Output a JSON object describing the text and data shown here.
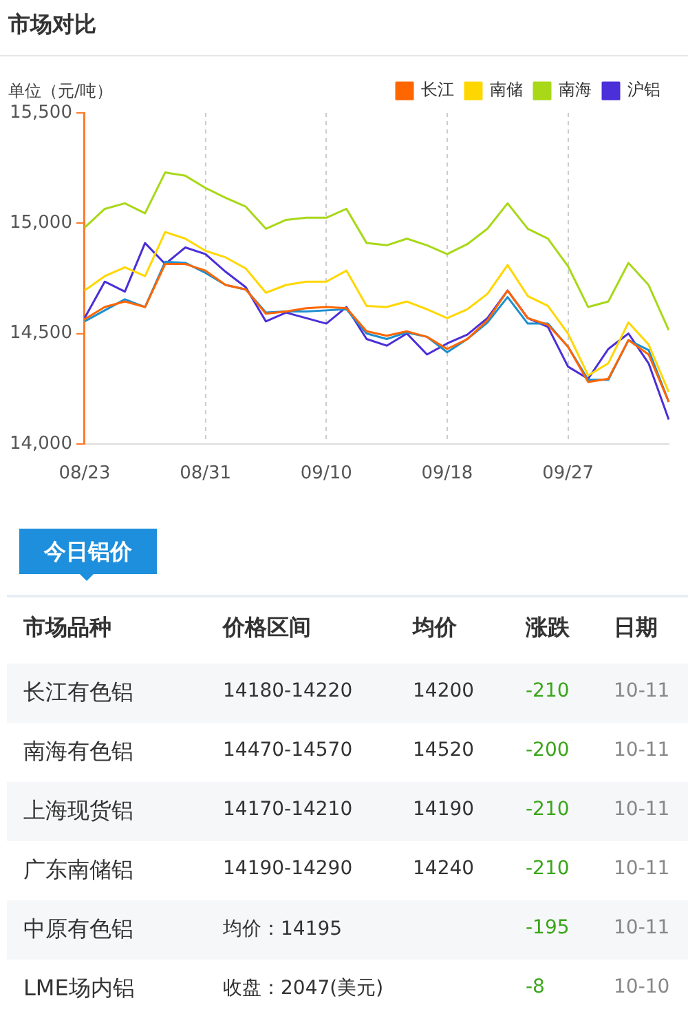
{
  "chart_data": [
    {
      "type": "line",
      "title": "市场对比",
      "ylabel": "单位（元/吨）",
      "categories": [
        "08/23",
        null,
        null,
        null,
        null,
        null,
        "08/31",
        null,
        null,
        null,
        null,
        null,
        "09/10",
        null,
        null,
        null,
        null,
        null,
        "09/18",
        null,
        null,
        null,
        null,
        null,
        "09/27",
        null,
        null,
        null,
        null,
        null
      ],
      "series": [
        {
          "name": "长江",
          "color": "#ff6600",
          "values": [
            14565,
            14620,
            14645,
            14620,
            14815,
            14815,
            14785,
            14720,
            14700,
            14590,
            14600,
            14615,
            14620,
            14615,
            14510,
            14490,
            14510,
            14485,
            14430,
            14475,
            14560,
            14695,
            14570,
            14540,
            14440,
            14280,
            14295,
            14470,
            14405,
            14190
          ]
        },
        {
          "name": "南储",
          "color": "#ffd700",
          "values": [
            14695,
            14760,
            14800,
            14760,
            14960,
            14930,
            14875,
            14845,
            14795,
            14685,
            14720,
            14735,
            14735,
            14785,
            14625,
            14620,
            14645,
            14610,
            14570,
            14610,
            14680,
            14810,
            14670,
            14625,
            14500,
            14310,
            14365,
            14550,
            14450,
            14235
          ]
        },
        {
          "name": "南海",
          "color": "#a8d818",
          "values": [
            14980,
            15065,
            15090,
            15045,
            15230,
            15215,
            15160,
            15115,
            15075,
            14975,
            15015,
            15025,
            15025,
            15065,
            14910,
            14900,
            14930,
            14900,
            14860,
            14905,
            14975,
            15090,
            14975,
            14930,
            14805,
            14620,
            14645,
            14820,
            14720,
            14515
          ]
        },
        {
          "color": "#1c8fd0",
          "values": [
            14555,
            14605,
            14655,
            14620,
            14825,
            14820,
            14775,
            14720,
            14700,
            14595,
            14600,
            14600,
            14605,
            14610,
            14500,
            14475,
            14505,
            14485,
            14415,
            14475,
            14550,
            14665,
            14545,
            14545,
            14440,
            14290,
            14290,
            14470,
            14425,
            14190
          ]
        },
        {
          "name": "沪铝",
          "color": "#4b2fd8",
          "values": [
            14570,
            14735,
            14690,
            14910,
            14815,
            14890,
            14860,
            14780,
            14710,
            14555,
            14595,
            14570,
            14545,
            14620,
            14475,
            14445,
            14500,
            14405,
            14455,
            14495,
            14570,
            14695,
            14570,
            14530,
            14350,
            14295,
            14430,
            14500,
            14365,
            14110
          ]
        }
      ],
      "ylim": [
        14000,
        15500
      ],
      "yticks": [
        {
          "value": 14000,
          "label": "14,000"
        },
        {
          "value": 14500,
          "label": "14,500"
        },
        {
          "value": 15000,
          "label": "15,000"
        },
        {
          "value": 15500,
          "label": "15,500"
        }
      ],
      "grid": "x",
      "legend": "top right",
      "marker": "none",
      "line_style": "solid"
    },
    {
      "type": "other",
      "title": "今日铝价",
      "categories": [
        "市场品种",
        "价格区间",
        "均价",
        "涨跌",
        "日期"
      ],
      "y_categories": [
        "长江有色铝",
        "南海有色铝",
        "上海现货铝",
        "广东南储铝",
        "中原有色铝",
        "LME场内铝"
      ],
      "cell_labels": [
        [
          "14180-14220",
          "14200",
          "-210",
          "10-11"
        ],
        [
          "14470-14570",
          "14520",
          "-200",
          "10-11"
        ],
        [
          "14170-14210",
          "14190",
          "-210",
          "10-11"
        ],
        [
          "14190-14290",
          "14240",
          "-210",
          "10-11"
        ],
        [
          "均价：14195",
          null,
          "-195",
          "10-11"
        ],
        [
          "收盘：2047(美元)",
          null,
          "-8",
          "10-10"
        ]
      ]
    }
  ]
}
